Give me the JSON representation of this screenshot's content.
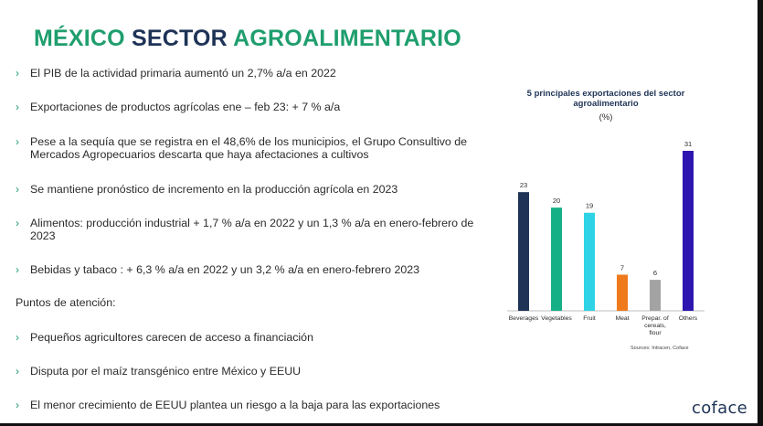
{
  "slide": {
    "title_part1": "MÉXICO",
    "title_part2": "SECTOR",
    "title_part3": "AGROALIMENTARIO",
    "chevron": "›",
    "bullets": [
      "El PIB de la actividad primaria aumentó un 2,7% a/a en 2022",
      "Exportaciones de productos agrícolas ene – feb 23: + 7 % a/a",
      "Pese a la sequía que se registra en el 48,6% de los municipios,  el Grupo Consultivo de Mercados Agropecuarios descarta que haya afectaciones a cultivos",
      "Se mantiene pronóstico de incremento en la producción agrícola en 2023",
      "Alimentos: producción industrial + 1,7 % a/a en 2022 y un 1,3 % a/a en enero-febrero de 2023",
      "Bebidas y tabaco : + 6,3 % a/a  en 2022 y un 3,2 % a/a en enero-febrero 2023"
    ],
    "attention_heading": "Puntos de atención:",
    "attention_bullets": [
      "Pequeños agricultores carecen de acceso a financiación",
      "Disputa por el maíz transgénico entre México y EEUU",
      "El menor crecimiento de EEUU plantea un riesgo a la baja para las exportaciones"
    ],
    "logo": "coface"
  },
  "colors": {
    "title_green": "#1f9e6e",
    "title_navy": "#1e3356"
  },
  "chart_data": {
    "type": "bar",
    "title": "5 principales exportaciones del sector agroalimentario",
    "unit": "(%)",
    "categories": [
      "Beverages",
      "Vegetables",
      "Fruit",
      "Meat",
      "Prepar. of cereals, flour",
      "Others"
    ],
    "category_lines": [
      [
        "Beverages"
      ],
      [
        "Vegetables"
      ],
      [
        "Fruit"
      ],
      [
        "Meat"
      ],
      [
        "Prepar. of",
        "cereals,",
        "flour"
      ],
      [
        "Others"
      ]
    ],
    "values": [
      23,
      20,
      19,
      7,
      6,
      31
    ],
    "colors": [
      "#1e3356",
      "#16b087",
      "#2fd3e6",
      "#ee7a1c",
      "#a3a3a3",
      "#2d16b0"
    ],
    "ylim": [
      0,
      31
    ],
    "grid": false,
    "source": "Sources: Intracen, Coface"
  }
}
